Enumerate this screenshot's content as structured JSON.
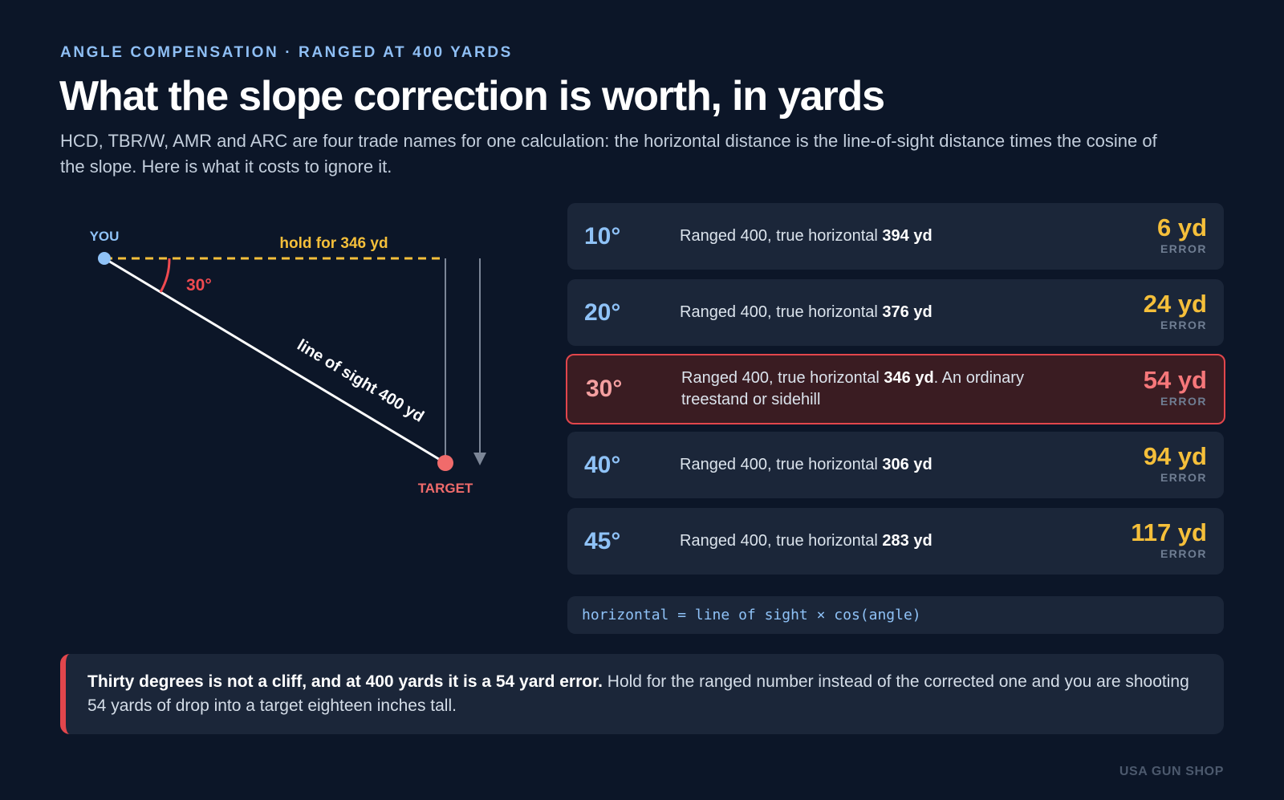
{
  "header": {
    "eyebrow": "ANGLE COMPENSATION · RANGED AT 400 YARDS",
    "title": "What the slope correction is worth, in yards",
    "subtitle": "HCD, TBR/W, AMR and ARC are four trade names for one calculation: the horizontal distance is the line-of-sight distance times the cosine of the slope. Here is what it costs to ignore it."
  },
  "diagram": {
    "you_label": "YOU",
    "target_label": "TARGET",
    "hold_label": "hold for 346 yd",
    "angle_label": "30°",
    "los_label": "line of sight 400 yd",
    "angle_deg": 30,
    "colors": {
      "you": "#8fc2f7",
      "target": "#f06b6b",
      "hold": "#f5bf3a",
      "angle": "#ef4a50",
      "los": "#ffffff"
    }
  },
  "rows": [
    {
      "angle": "10°",
      "prefix": "Ranged 400, true horizontal ",
      "value": "394 yd",
      "suffix": "",
      "error": "6 yd",
      "error_label": "ERROR",
      "highlight": false
    },
    {
      "angle": "20°",
      "prefix": "Ranged 400, true horizontal ",
      "value": "376 yd",
      "suffix": "",
      "error": "24 yd",
      "error_label": "ERROR",
      "highlight": false
    },
    {
      "angle": "30°",
      "prefix": "Ranged 400, true horizontal ",
      "value": "346 yd",
      "suffix": ". An ordinary treestand or sidehill",
      "error": "54 yd",
      "error_label": "ERROR",
      "highlight": true
    },
    {
      "angle": "40°",
      "prefix": "Ranged 400, true horizontal ",
      "value": "306 yd",
      "suffix": "",
      "error": "94 yd",
      "error_label": "ERROR",
      "highlight": false
    },
    {
      "angle": "45°",
      "prefix": "Ranged 400, true horizontal ",
      "value": "283 yd",
      "suffix": "",
      "error": "117 yd",
      "error_label": "ERROR",
      "highlight": false
    }
  ],
  "formula": "horizontal = line of sight × cos(angle)",
  "callout": {
    "bold": "Thirty degrees is not a cliff, and at 400 yards it is a 54 yard error.",
    "rest": " Hold for the ranged number instead of the corrected one and you are shooting 54 yards of drop into a target eighteen inches tall."
  },
  "footer": "USA GUN SHOP"
}
